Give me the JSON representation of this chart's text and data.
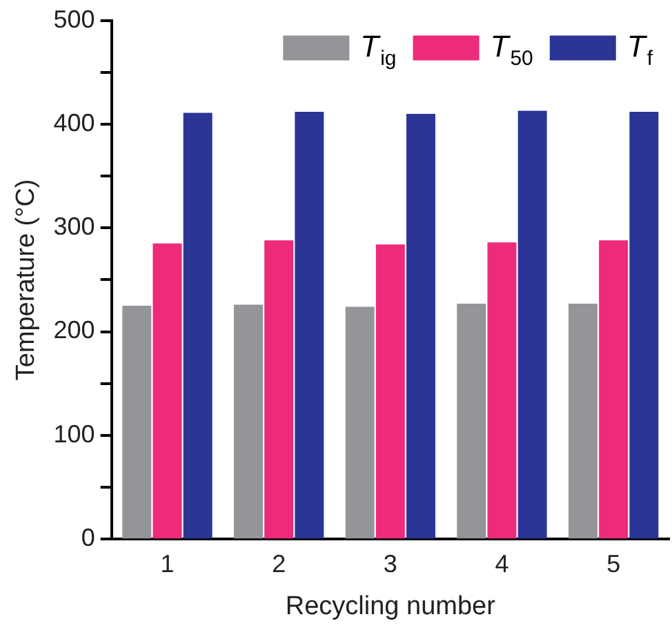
{
  "chart_data": {
    "type": "bar",
    "xlabel": "Recycling number",
    "ylabel": "Temperature (°C)",
    "categories": [
      "1",
      "2",
      "3",
      "4",
      "5"
    ],
    "series": [
      {
        "name": "T$_{ig}$",
        "color": "#939598",
        "values": [
          225,
          226,
          224,
          227,
          227
        ]
      },
      {
        "name": "T$_{50}$",
        "color": "#ee2a7b",
        "values": [
          285,
          288,
          284,
          286,
          288
        ]
      },
      {
        "name": "T$_{f}$",
        "color": "#2b3595",
        "values": [
          411,
          412,
          410,
          413,
          412
        ]
      }
    ],
    "ylim": [
      0,
      500
    ],
    "yticks": [
      0,
      {
        "value": 50,
        "label": null
      },
      100,
      {
        "value": 150,
        "label": null
      },
      200,
      {
        "value": 250,
        "label": null
      },
      300,
      {
        "value": 350,
        "label": null
      },
      400,
      {
        "value": 450,
        "label": null
      },
      500
    ],
    "grid": false,
    "legend": "top right"
  }
}
